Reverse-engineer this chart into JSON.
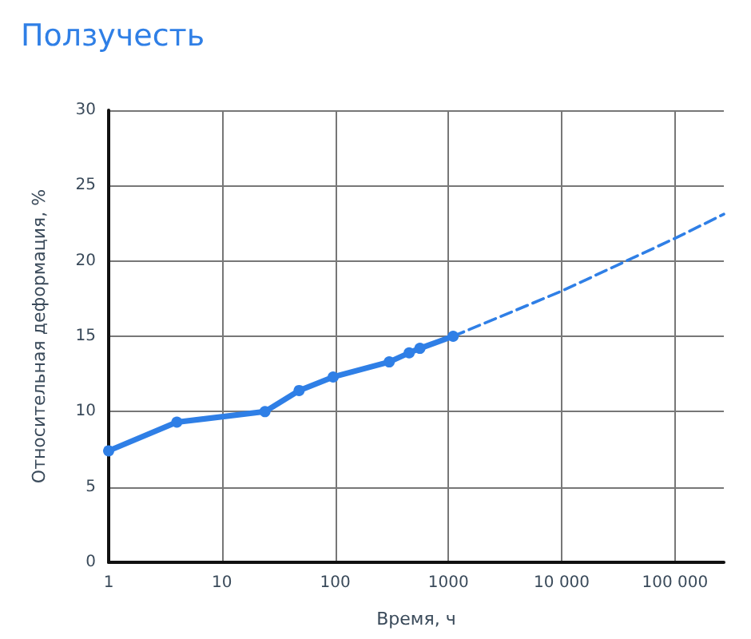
{
  "chart_data": {
    "type": "line",
    "title": "Ползучесть",
    "xlabel": "Время, ч",
    "ylabel": "Относительная деформация, %",
    "log": "x",
    "grid": true,
    "xlim": [
      1,
      270000
    ],
    "xticks": [
      1,
      10,
      100,
      1000,
      {
        "value": 10000,
        "label": "10 000"
      },
      {
        "value": 100000,
        "label": "100 000"
      }
    ],
    "ylim": [
      0,
      30
    ],
    "yticks": [
      0,
      5,
      10,
      15,
      20,
      25,
      30
    ],
    "series": [
      {
        "color": "#2f7fe6",
        "marker": "circle",
        "line_style": "solid",
        "x": [
          1,
          4,
          24,
          48,
          96,
          300,
          450,
          560,
          1100
        ],
        "values": [
          7.4,
          9.3,
          10.0,
          11.4,
          12.3,
          13.3,
          13.9,
          14.2,
          15.0
        ]
      },
      {
        "color": "#2f7fe6",
        "marker": "none",
        "line_style": "dashed",
        "x": [
          1100,
          10000,
          100000,
          270000
        ],
        "values": [
          15.0,
          18.0,
          21.5,
          23.1
        ]
      }
    ]
  }
}
